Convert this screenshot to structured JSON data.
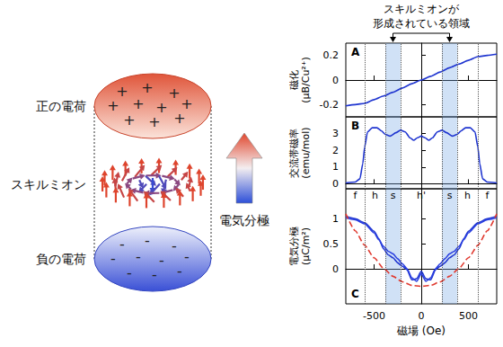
{
  "diagram": {
    "top_label": "正の電荷",
    "middle_label": "スキルミオン",
    "bottom_label": "負の電荷",
    "top_sign": "+",
    "bottom_sign": "-",
    "arrow_label": "電気分極"
  },
  "annotation": {
    "lines": [
      "スキルミオンが",
      "形成されている領域"
    ],
    "ranges": [
      [
        -380,
        -220
      ],
      [
        220,
        380
      ]
    ]
  },
  "chart_data": [
    {
      "type": "line",
      "panel": "A",
      "ylabel": [
        "磁化",
        "(μB/Cu²⁺)"
      ],
      "xlim": [
        -800,
        800
      ],
      "xticks": [
        -500,
        0,
        500
      ],
      "ylim": [
        -0.3,
        0.3
      ],
      "yticks": [
        -0.2,
        0,
        0.2
      ],
      "grid": false,
      "tick_labels": "y",
      "series": [
        {
          "color": "#1f35d0",
          "line_style": "solid",
          "x": [
            -800,
            -700,
            -600,
            -500,
            -400,
            -300,
            -200,
            -100,
            0,
            100,
            200,
            300,
            400,
            500,
            600,
            700,
            800
          ],
          "values": [
            -0.21,
            -0.2,
            -0.19,
            -0.16,
            -0.13,
            -0.1,
            -0.065,
            -0.03,
            0,
            0.03,
            0.065,
            0.1,
            0.13,
            0.16,
            0.19,
            0.2,
            0.21
          ]
        }
      ]
    },
    {
      "type": "line",
      "panel": "B",
      "ylabel": [
        "交流帯磁率",
        "(emu/mol)"
      ],
      "xlim": [
        -800,
        800
      ],
      "xticks": [
        -500,
        0,
        500
      ],
      "ylim": [
        -0.3,
        4
      ],
      "yticks": [
        0,
        1,
        2,
        3
      ],
      "grid": false,
      "tick_labels": "y",
      "series": [
        {
          "color": "#1f35d0",
          "line_style": "solid",
          "x": [
            -800,
            -700,
            -650,
            -620,
            -600,
            -570,
            -520,
            -470,
            -420,
            -380,
            -330,
            -270,
            -220,
            -170,
            -120,
            -80,
            -40,
            0,
            40,
            80,
            120,
            170,
            220,
            270,
            330,
            380,
            420,
            470,
            520,
            570,
            600,
            620,
            650,
            700,
            800
          ],
          "values": [
            0.05,
            0.1,
            0.3,
            1.2,
            2.2,
            3.1,
            3.35,
            3.35,
            3.15,
            2.95,
            2.85,
            3.05,
            3.2,
            3.1,
            2.75,
            2.6,
            2.75,
            2.85,
            2.75,
            2.6,
            2.75,
            3.1,
            3.2,
            3.05,
            2.85,
            2.95,
            3.15,
            3.35,
            3.35,
            3.1,
            2.2,
            1.2,
            0.3,
            0.1,
            0.05
          ]
        }
      ]
    },
    {
      "type": "line",
      "panel": "C",
      "ylabel": [
        "電気分極",
        "(μC/m²)"
      ],
      "xlabel": "磁場 (Oe)",
      "xlim": [
        -800,
        800
      ],
      "xticks": [
        -500,
        0,
        500
      ],
      "ylim": [
        -0.7,
        1.6
      ],
      "yticks": [
        0,
        0.5,
        1
      ],
      "grid": false,
      "phases": [
        {
          "label": "f",
          "from": -800,
          "to": -600
        },
        {
          "label": "h",
          "from": -600,
          "to": -380
        },
        {
          "label": "s",
          "from": -380,
          "to": -220
        },
        {
          "label": "h'",
          "from": -220,
          "to": 220
        },
        {
          "label": "s",
          "from": 220,
          "to": 380
        },
        {
          "label": "h",
          "from": 380,
          "to": 600
        },
        {
          "label": "f",
          "from": 600,
          "to": 800
        }
      ],
      "series": [
        {
          "color": "#1f35d0",
          "line_style": "solid",
          "x": [
            -800,
            -700,
            -600,
            -500,
            -450,
            -400,
            -350,
            -300,
            -250,
            -200,
            -150,
            -100,
            -50,
            0,
            50,
            100,
            150,
            200,
            250,
            300,
            350,
            400,
            450,
            500,
            600,
            700,
            800
          ],
          "values": [
            1.05,
            1.0,
            0.92,
            0.75,
            0.6,
            0.4,
            0.28,
            0.22,
            0.12,
            0.05,
            -0.02,
            -0.22,
            -0.2,
            -0.05,
            -0.2,
            -0.22,
            -0.02,
            0.05,
            0.12,
            0.22,
            0.28,
            0.4,
            0.6,
            0.75,
            0.92,
            1.0,
            1.05
          ]
        },
        {
          "color": "#2a3fe0",
          "line_style": "solid",
          "x": [
            -800,
            -700,
            -600,
            -500,
            -450,
            -400,
            -350,
            -300,
            -250,
            -200,
            -150,
            -100,
            -50,
            0,
            50,
            100,
            150,
            200,
            250,
            300,
            350,
            400,
            450,
            500,
            600,
            700,
            800
          ],
          "values": [
            1.02,
            0.98,
            0.9,
            0.72,
            0.58,
            0.45,
            0.35,
            0.3,
            0.2,
            0.1,
            0.0,
            -0.18,
            -0.25,
            -0.1,
            -0.25,
            -0.18,
            0.0,
            0.1,
            0.2,
            0.3,
            0.35,
            0.45,
            0.58,
            0.72,
            0.9,
            0.98,
            1.02
          ]
        },
        {
          "color": "#e03a30",
          "line_style": "dashed",
          "x": [
            -800,
            -700,
            -600,
            -500,
            -400,
            -300,
            -200,
            -100,
            0,
            100,
            200,
            300,
            400,
            500,
            600,
            700,
            800
          ],
          "values": [
            1.1,
            0.76,
            0.47,
            0.22,
            0.01,
            -0.15,
            -0.26,
            -0.33,
            -0.35,
            -0.33,
            -0.26,
            -0.15,
            0.01,
            0.22,
            0.47,
            0.76,
            1.1
          ]
        }
      ]
    }
  ]
}
